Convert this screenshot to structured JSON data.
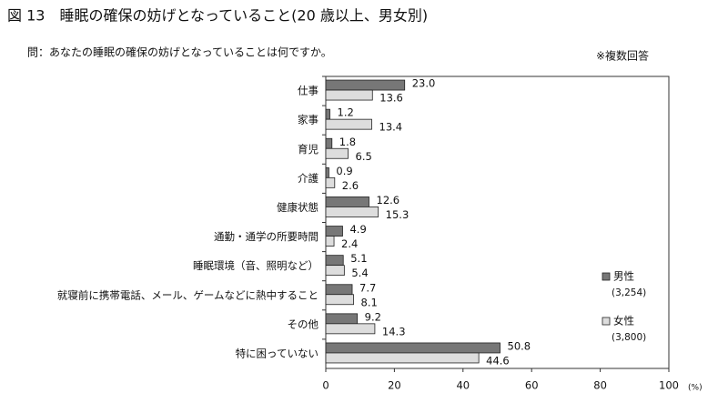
{
  "chart_data": {
    "type": "hbar",
    "title": "図 13　睡眠の確保の妨げとなっていること(20 歳以上、男女別)",
    "subtitle": "問：あなたの睡眠の確保の妨げとなっていることは何ですか。",
    "note": "※複数回答",
    "x_unit": "(%)",
    "categories": [
      "仕事",
      "家事",
      "育児",
      "介護",
      "健康状態",
      "通勤・通学の所要時間",
      "睡眠環境（音、照明など）",
      "就寝前に携帯電話、メール、ゲームなどに熱中すること",
      "その他",
      "特に困っていない"
    ],
    "series": [
      {
        "name": "男性",
        "sample": "(3,254)",
        "color": "#777777",
        "values": [
          23.0,
          1.2,
          1.8,
          0.9,
          12.6,
          4.9,
          5.1,
          7.7,
          9.2,
          50.8
        ],
        "value_labels": [
          "23.0",
          "1.2",
          "1.8",
          "0.9",
          "12.6",
          "4.9",
          "5.1",
          "7.7",
          "9.2",
          "50.8"
        ]
      },
      {
        "name": "女性",
        "sample": "(3,800)",
        "color": "#dddddd",
        "values": [
          13.6,
          13.4,
          6.5,
          2.6,
          15.3,
          2.4,
          5.4,
          8.1,
          14.3,
          44.6
        ],
        "value_labels": [
          "13.6",
          "13.4",
          "6.5",
          "2.6",
          "15.3",
          "2.4",
          "5.4",
          "8.1",
          "14.3",
          "44.6"
        ]
      }
    ],
    "xlim": [
      0,
      100
    ],
    "xticks": [
      0,
      20,
      40,
      60,
      80,
      100
    ]
  }
}
